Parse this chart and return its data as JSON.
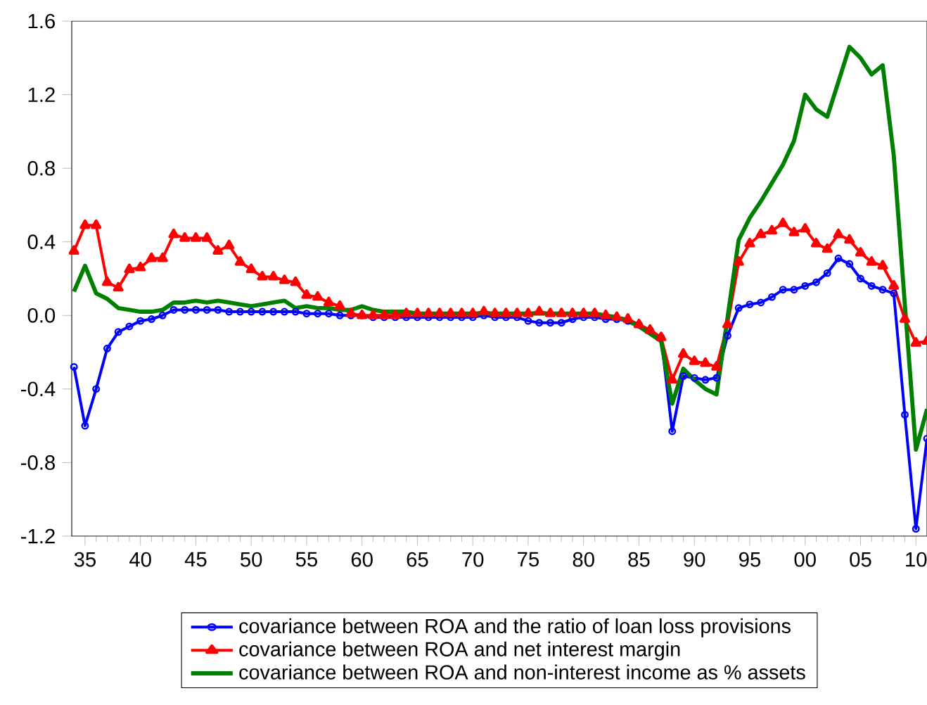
{
  "chart_data": {
    "type": "line",
    "x": [
      1934,
      1935,
      1936,
      1937,
      1938,
      1939,
      1940,
      1941,
      1942,
      1943,
      1944,
      1945,
      1946,
      1947,
      1948,
      1949,
      1950,
      1951,
      1952,
      1953,
      1954,
      1955,
      1956,
      1957,
      1958,
      1959,
      1960,
      1961,
      1962,
      1963,
      1964,
      1965,
      1966,
      1967,
      1968,
      1969,
      1970,
      1971,
      1972,
      1973,
      1974,
      1975,
      1976,
      1977,
      1978,
      1979,
      1980,
      1981,
      1982,
      1983,
      1984,
      1985,
      1986,
      1987,
      1988,
      1989,
      1990,
      1991,
      1992,
      1993,
      1994,
      1995,
      1996,
      1997,
      1998,
      1999,
      2000,
      2001,
      2002,
      2003,
      2004,
      2005,
      2006,
      2007,
      2008,
      2009,
      2010,
      2011
    ],
    "series": [
      {
        "name": "covariance between ROA and the ratio of loan loss provisions",
        "color": "#0000ff",
        "marker": "circle",
        "values": [
          -0.28,
          -0.6,
          -0.4,
          -0.18,
          -0.09,
          -0.06,
          -0.03,
          -0.02,
          0.0,
          0.03,
          0.03,
          0.03,
          0.03,
          0.03,
          0.02,
          0.02,
          0.02,
          0.02,
          0.02,
          0.02,
          0.02,
          0.01,
          0.01,
          0.01,
          0.0,
          0.0,
          0.0,
          -0.01,
          -0.01,
          -0.01,
          -0.01,
          -0.01,
          -0.01,
          -0.01,
          -0.01,
          -0.01,
          -0.01,
          0.0,
          -0.01,
          -0.01,
          -0.01,
          -0.03,
          -0.04,
          -0.04,
          -0.04,
          -0.02,
          -0.01,
          -0.01,
          -0.02,
          -0.02,
          -0.03,
          -0.05,
          -0.08,
          -0.12,
          -0.63,
          -0.33,
          -0.34,
          -0.35,
          -0.34,
          -0.11,
          0.04,
          0.06,
          0.07,
          0.1,
          0.14,
          0.14,
          0.16,
          0.18,
          0.23,
          0.31,
          0.28,
          0.2,
          0.16,
          0.14,
          0.12,
          -0.54,
          -1.16,
          -0.67
        ]
      },
      {
        "name": "covariance between ROA and net interest margin",
        "color": "#ff0000",
        "marker": "triangle",
        "values": [
          0.35,
          0.49,
          0.49,
          0.18,
          0.15,
          0.25,
          0.26,
          0.31,
          0.31,
          0.44,
          0.42,
          0.42,
          0.42,
          0.35,
          0.38,
          0.29,
          0.25,
          0.21,
          0.21,
          0.19,
          0.18,
          0.11,
          0.1,
          0.07,
          0.05,
          0.01,
          0.0,
          0.0,
          0.0,
          0.0,
          0.01,
          0.01,
          0.01,
          0.01,
          0.01,
          0.01,
          0.01,
          0.02,
          0.01,
          0.01,
          0.01,
          0.01,
          0.02,
          0.01,
          0.01,
          0.01,
          0.01,
          0.01,
          0.0,
          -0.01,
          -0.02,
          -0.05,
          -0.08,
          -0.12,
          -0.35,
          -0.21,
          -0.25,
          -0.26,
          -0.28,
          -0.05,
          0.29,
          0.39,
          0.44,
          0.46,
          0.5,
          0.45,
          0.47,
          0.39,
          0.36,
          0.44,
          0.41,
          0.34,
          0.29,
          0.27,
          0.16,
          -0.02,
          -0.15,
          -0.14
        ]
      },
      {
        "name": "covariance between ROA and non-interest income as % assets",
        "color": "#008000",
        "marker": "none",
        "values": [
          0.13,
          0.27,
          0.12,
          0.09,
          0.04,
          0.03,
          0.02,
          0.02,
          0.03,
          0.07,
          0.07,
          0.08,
          0.07,
          0.08,
          0.07,
          0.06,
          0.05,
          0.06,
          0.07,
          0.08,
          0.04,
          0.05,
          0.04,
          0.04,
          0.03,
          0.03,
          0.05,
          0.03,
          0.02,
          0.02,
          0.02,
          0.01,
          0.01,
          0.01,
          0.01,
          0.01,
          0.01,
          0.01,
          0.01,
          0.01,
          0.01,
          0.01,
          0.01,
          0.01,
          0.01,
          0.01,
          0.01,
          0.01,
          0.0,
          -0.01,
          -0.03,
          -0.06,
          -0.1,
          -0.14,
          -0.48,
          -0.29,
          -0.35,
          -0.4,
          -0.43,
          -0.01,
          0.41,
          0.53,
          0.62,
          0.72,
          0.82,
          0.95,
          1.2,
          1.12,
          1.08,
          1.27,
          1.46,
          1.4,
          1.31,
          1.36,
          0.87,
          0.06,
          -0.73,
          -0.51
        ]
      }
    ],
    "xlim": [
      1933.8,
      2011
    ],
    "xticks": [
      {
        "value": 1935,
        "label": "35"
      },
      {
        "value": 1940,
        "label": "40"
      },
      {
        "value": 1945,
        "label": "45"
      },
      {
        "value": 1950,
        "label": "50"
      },
      {
        "value": 1955,
        "label": "55"
      },
      {
        "value": 1960,
        "label": "60"
      },
      {
        "value": 1965,
        "label": "65"
      },
      {
        "value": 1970,
        "label": "70"
      },
      {
        "value": 1975,
        "label": "75"
      },
      {
        "value": 1980,
        "label": "80"
      },
      {
        "value": 1985,
        "label": "85"
      },
      {
        "value": 1990,
        "label": "90"
      },
      {
        "value": 1995,
        "label": "95"
      },
      {
        "value": 2000,
        "label": "00"
      },
      {
        "value": 2005,
        "label": "05"
      },
      {
        "value": 2010,
        "label": "10"
      }
    ],
    "ylim": [
      -1.2,
      1.6
    ],
    "yticks": [
      -1.2,
      -0.8,
      -0.4,
      {
        "value": 0,
        "label": "0.0"
      },
      0.4,
      0.8,
      1.2,
      1.6
    ],
    "grid": false,
    "legend": "bottom"
  }
}
